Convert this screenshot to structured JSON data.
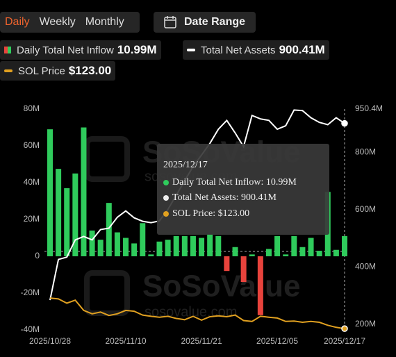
{
  "controls": {
    "tabs": [
      "Daily",
      "Weekly",
      "Monthly"
    ],
    "date_range": "Date Range"
  },
  "legend_values": [
    "10.99M",
    "900.41M",
    "$123.00"
  ],
  "watermark": {
    "brand": "SoSoValue",
    "site": "sosovalue.com"
  },
  "tooltip": {
    "date": "2025/12/17",
    "rows": [
      "Daily Total Net Inflow: 10.99M",
      "Total Net Assets: 900.41M",
      "SOL Price: $123.00"
    ]
  },
  "chart_data": {
    "type": "bar",
    "categories": [
      "2025/10/28",
      null,
      null,
      null,
      null,
      null,
      null,
      null,
      null,
      "2025/11/10",
      null,
      null,
      null,
      null,
      null,
      null,
      null,
      null,
      "2025/11/21",
      null,
      null,
      null,
      null,
      null,
      null,
      null,
      null,
      "2025/12/05",
      null,
      null,
      null,
      null,
      null,
      null,
      null,
      "2025/12/17"
    ],
    "ylim": [
      -40,
      80
    ],
    "yticks": [
      {
        "value": -40,
        "label": "-40M"
      },
      {
        "value": -20,
        "label": "-20M"
      },
      0,
      {
        "value": 20,
        "label": "20M"
      },
      {
        "value": 40,
        "label": "40M"
      },
      {
        "value": 60,
        "label": "60M"
      },
      {
        "value": 80,
        "label": "80M"
      }
    ],
    "y2lim": [
      180,
      950.4
    ],
    "y2ticks": [
      {
        "value": 200,
        "label": "200M"
      },
      {
        "value": 400,
        "label": "400M"
      },
      {
        "value": 600,
        "label": "600M"
      },
      {
        "value": 800,
        "label": "800M"
      },
      {
        "value": 950.4,
        "label": "950.4M"
      }
    ],
    "y3lim": [
      120,
      640
    ],
    "series": [
      {
        "name": "Daily Total Net Inflow",
        "type": "bar",
        "color": "#2fcb5c",
        "negative_color": "#e8433c",
        "values": [
          69,
          47.5,
          37,
          45,
          70,
          14,
          9,
          29,
          13,
          10,
          7,
          18,
          1,
          8,
          9,
          11,
          11,
          11,
          10,
          12,
          11,
          -8,
          5,
          -14,
          1,
          -32,
          4,
          11,
          1,
          11,
          5,
          10,
          3,
          35,
          3.5,
          10.99
        ]
      },
      {
        "name": "Total Net Assets",
        "type": "line",
        "axis": "y2",
        "color": "#ffffff",
        "values": [
          284,
          426,
          434,
          494,
          506,
          494,
          530,
          535,
          573,
          595,
          571,
          559,
          554,
          560,
          600,
          650,
          700,
          750,
          790,
          831,
          880,
          911,
          867,
          819,
          928,
          916,
          911,
          880,
          892,
          947,
          945,
          920,
          904,
          896,
          920,
          900.41
        ]
      },
      {
        "name": "SOL Price",
        "type": "line",
        "axis": "y3",
        "color": "#e0a020",
        "values": [
          195,
          193,
          183,
          190,
          166,
          158,
          162,
          154,
          158,
          166,
          164,
          155,
          152,
          150,
          152,
          147,
          144,
          152,
          143,
          151,
          153,
          151,
          155,
          142,
          140,
          152,
          150,
          148,
          140,
          141,
          138,
          140,
          138,
          131,
          126,
          123
        ]
      }
    ]
  }
}
